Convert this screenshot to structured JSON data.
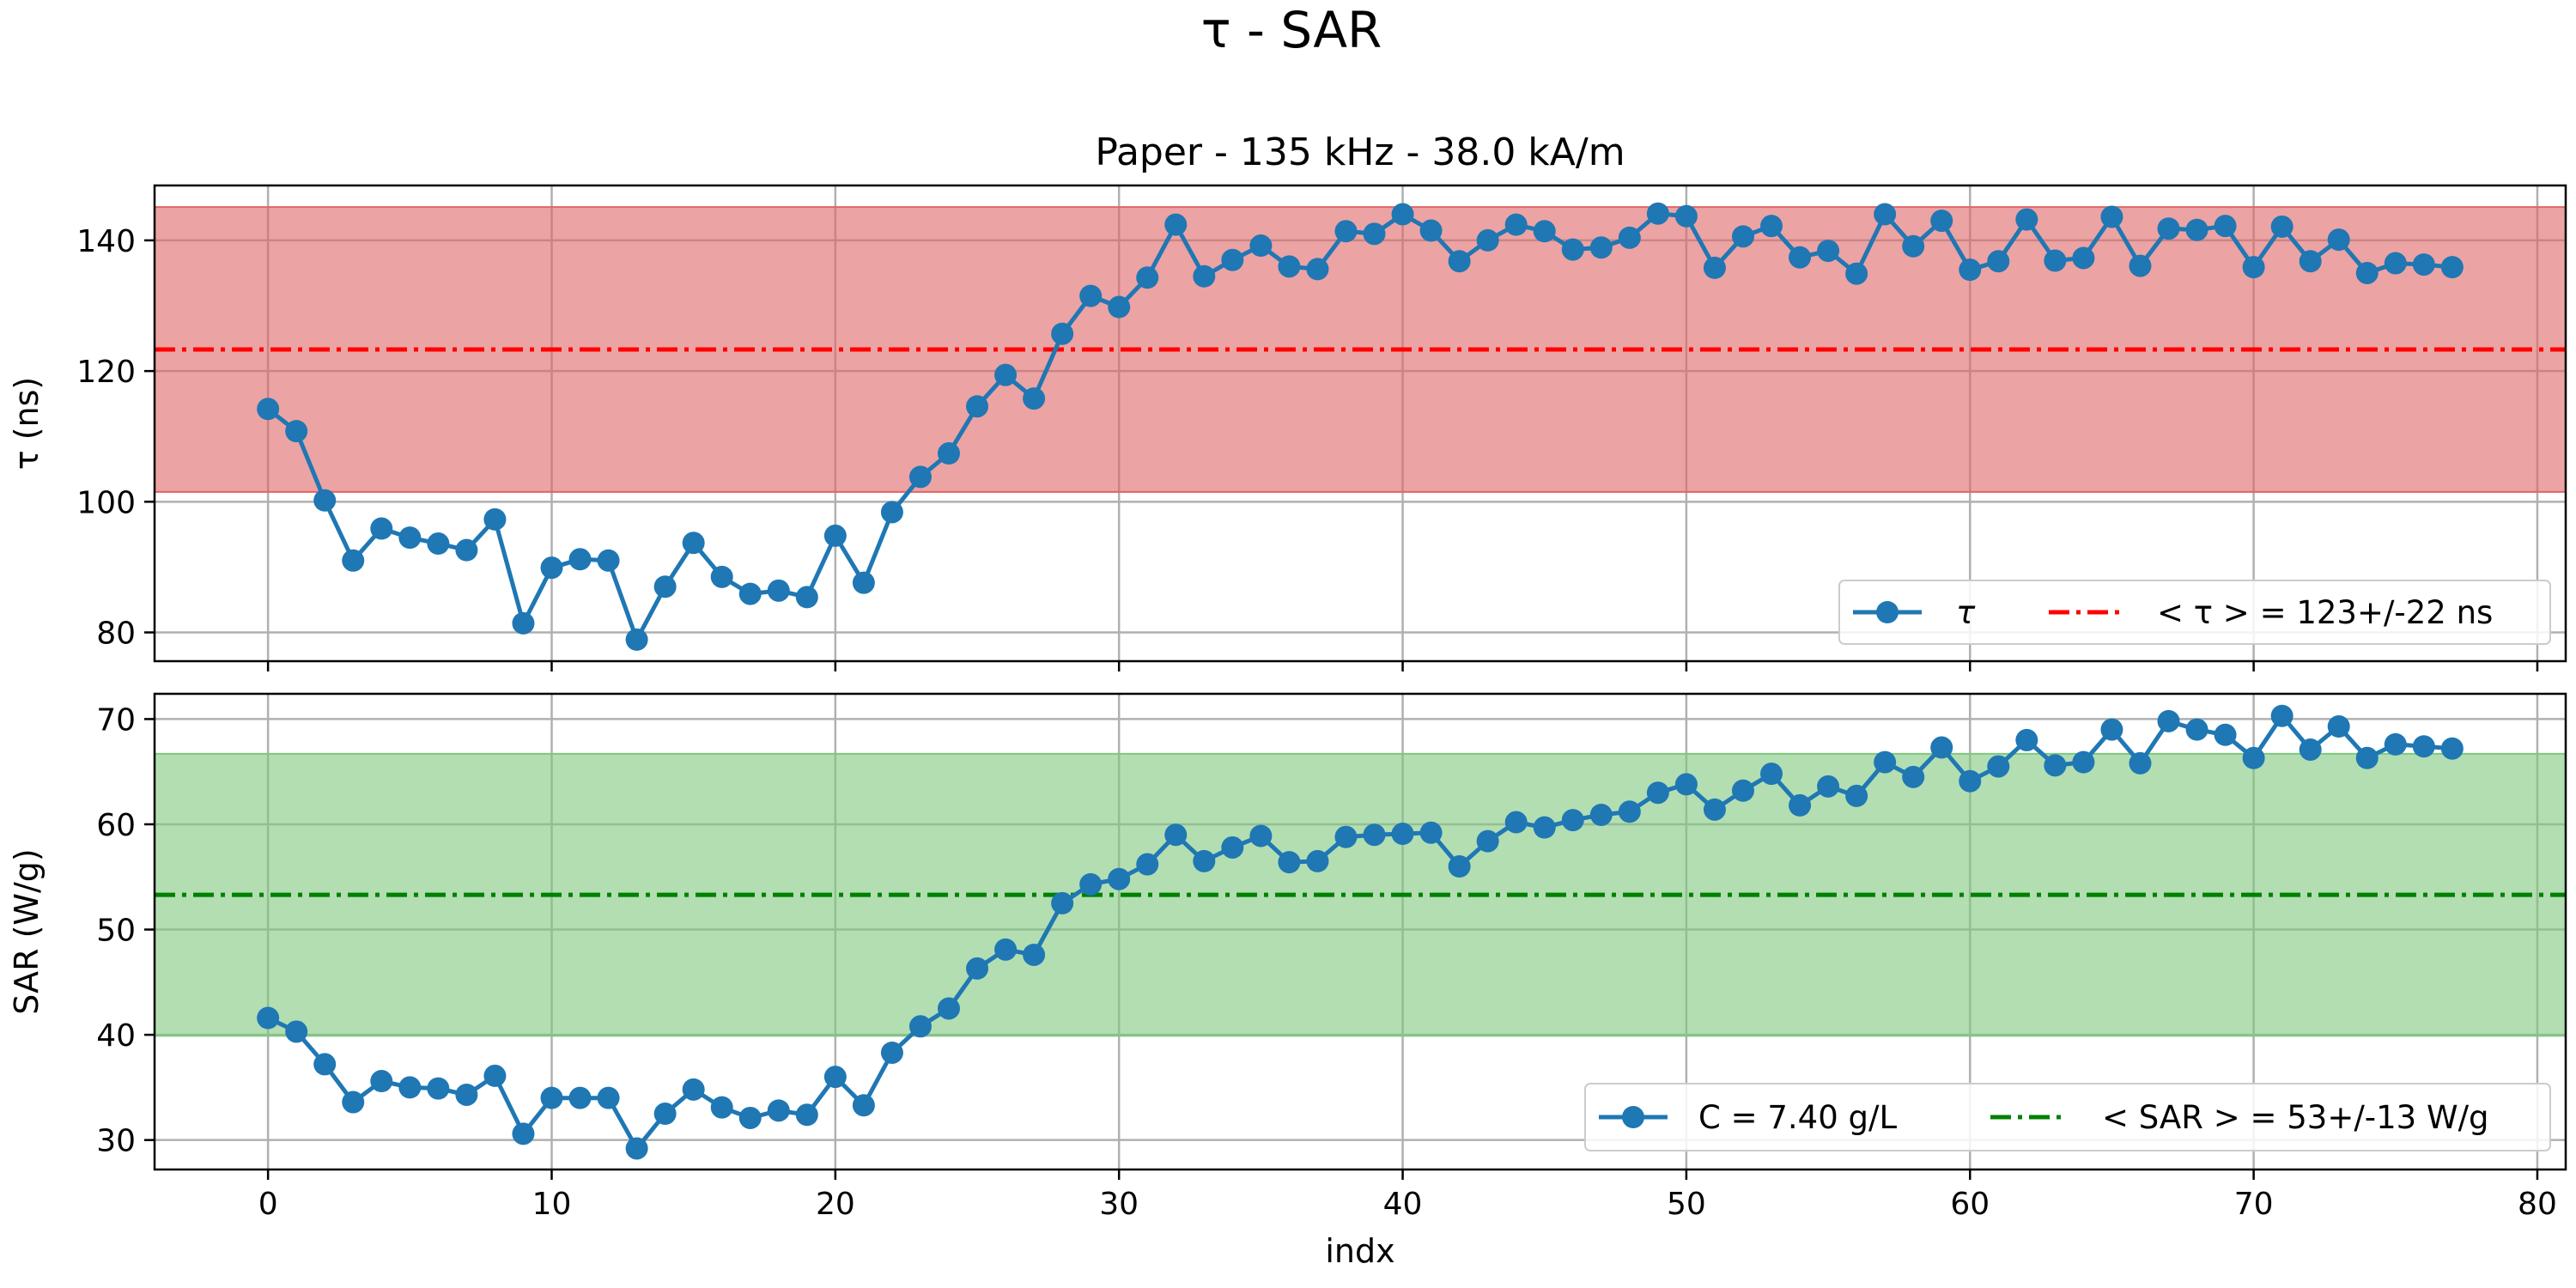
{
  "suptitle": "τ - SAR",
  "chart_data": [
    {
      "type": "line",
      "title": "Paper - 135 kHz - 38.0 kA/m",
      "xlabel": "",
      "ylabel": "τ (ns)",
      "xlim": [
        -4,
        81
      ],
      "ylim": [
        75.6,
        148.4
      ],
      "xticks": [
        0,
        10,
        20,
        30,
        40,
        50,
        60,
        70,
        80
      ],
      "xtick_labels": [
        "",
        "",
        "",
        "",
        "",
        "",
        "",
        "",
        ""
      ],
      "yticks": [
        80,
        100,
        120,
        140
      ],
      "ytick_labels": [
        "80",
        "100",
        "120",
        "140"
      ],
      "grid": true,
      "legend_position": "lower-right",
      "series": [
        {
          "name": "τ",
          "color": "#1f77b4",
          "marker": "circle",
          "x": [
            0,
            1,
            2,
            3,
            4,
            5,
            6,
            7,
            8,
            9,
            10,
            11,
            12,
            13,
            14,
            15,
            16,
            17,
            18,
            19,
            20,
            21,
            22,
            23,
            24,
            25,
            26,
            27,
            28,
            29,
            30,
            31,
            32,
            33,
            34,
            35,
            36,
            37,
            38,
            39,
            40,
            41,
            42,
            43,
            44,
            45,
            46,
            47,
            48,
            49,
            50,
            51,
            52,
            53,
            54,
            55,
            56,
            57,
            58,
            59,
            60,
            61,
            62,
            63,
            64,
            65,
            66,
            67,
            68,
            69,
            70,
            71,
            72,
            73,
            74,
            75,
            76,
            77
          ],
          "values": [
            114.2,
            110.8,
            100.2,
            91.0,
            95.9,
            94.5,
            93.6,
            92.6,
            97.3,
            81.4,
            89.9,
            91.2,
            91.0,
            78.9,
            87.0,
            93.7,
            88.5,
            85.9,
            86.4,
            85.4,
            94.8,
            87.6,
            98.4,
            103.8,
            107.4,
            114.6,
            119.4,
            115.8,
            125.7,
            131.5,
            129.8,
            134.3,
            142.4,
            134.5,
            137.0,
            139.2,
            136.0,
            135.6,
            141.4,
            141.0,
            144.0,
            141.5,
            136.8,
            140.0,
            142.4,
            141.4,
            138.6,
            138.9,
            140.4,
            144.1,
            143.7,
            135.8,
            140.6,
            142.2,
            137.4,
            138.4,
            134.9,
            144.0,
            139.1,
            143.0,
            135.5,
            136.8,
            143.2,
            136.9,
            137.3,
            143.6,
            136.1,
            141.8,
            141.6,
            142.2,
            135.9,
            142.1,
            136.8,
            140.1,
            135.0,
            136.5,
            136.3,
            135.9
          ]
        },
        {
          "name": "< τ >  = 123+/-22 ns",
          "color": "#ff0000",
          "style": "dashdot",
          "mean": 123.3,
          "band": [
            101.5,
            145.1
          ],
          "band_color": "#e06666"
        }
      ]
    },
    {
      "type": "line",
      "title": "",
      "xlabel": "indx",
      "ylabel": "SAR (W/g)",
      "xlim": [
        -4,
        81
      ],
      "ylim": [
        27.2,
        72.4
      ],
      "xticks": [
        0,
        10,
        20,
        30,
        40,
        50,
        60,
        70,
        80
      ],
      "xtick_labels": [
        "0",
        "10",
        "20",
        "30",
        "40",
        "50",
        "60",
        "70",
        "80"
      ],
      "yticks": [
        30,
        40,
        50,
        60,
        70
      ],
      "ytick_labels": [
        "30",
        "40",
        "50",
        "60",
        "70"
      ],
      "grid": true,
      "legend_position": "lower-right",
      "series": [
        {
          "name": "C = 7.40 g/L",
          "color": "#1f77b4",
          "marker": "circle",
          "x": [
            0,
            1,
            2,
            3,
            4,
            5,
            6,
            7,
            8,
            9,
            10,
            11,
            12,
            13,
            14,
            15,
            16,
            17,
            18,
            19,
            20,
            21,
            22,
            23,
            24,
            25,
            26,
            27,
            28,
            29,
            30,
            31,
            32,
            33,
            34,
            35,
            36,
            37,
            38,
            39,
            40,
            41,
            42,
            43,
            44,
            45,
            46,
            47,
            48,
            49,
            50,
            51,
            52,
            53,
            54,
            55,
            56,
            57,
            58,
            59,
            60,
            61,
            62,
            63,
            64,
            65,
            66,
            67,
            68,
            69,
            70,
            71,
            72,
            73,
            74,
            75,
            76,
            77
          ],
          "values": [
            41.6,
            40.3,
            37.2,
            33.6,
            35.6,
            35.0,
            34.9,
            34.3,
            36.1,
            30.6,
            34.0,
            34.0,
            34.0,
            29.2,
            32.5,
            34.8,
            33.1,
            32.1,
            32.8,
            32.4,
            36.0,
            33.3,
            38.3,
            40.8,
            42.5,
            46.3,
            48.1,
            47.6,
            52.5,
            54.3,
            54.8,
            56.2,
            59.0,
            56.5,
            57.8,
            58.9,
            56.4,
            56.5,
            58.8,
            59.0,
            59.1,
            59.2,
            56.0,
            58.4,
            60.2,
            59.7,
            60.4,
            60.9,
            61.2,
            63.0,
            63.8,
            61.4,
            63.2,
            64.8,
            61.8,
            63.6,
            62.7,
            65.9,
            64.5,
            67.3,
            64.1,
            65.5,
            68.0,
            65.6,
            65.9,
            69.0,
            65.8,
            69.8,
            69.0,
            68.5,
            66.3,
            70.3,
            67.1,
            69.3,
            66.3,
            67.6,
            67.4,
            67.2
          ]
        },
        {
          "name": "< SAR >  = 53+/-13 W/g",
          "color": "#008000",
          "style": "dashdot",
          "mean": 53.3,
          "band": [
            39.9,
            66.7
          ],
          "band_color": "#7ec87e"
        }
      ]
    }
  ]
}
